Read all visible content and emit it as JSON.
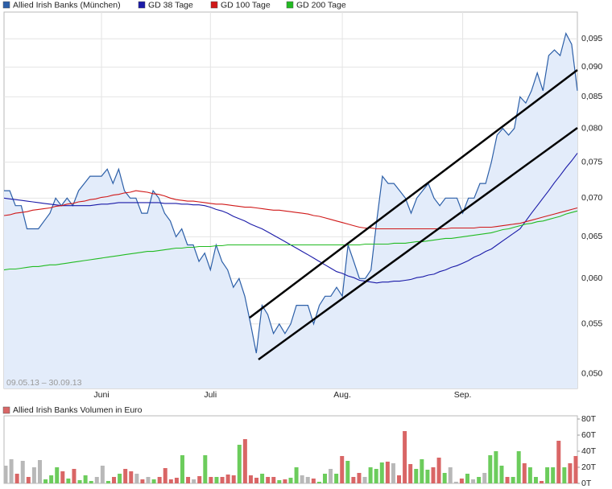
{
  "chart_data": [
    {
      "type": "line",
      "log_scale": true,
      "grid": true,
      "legend": "top-left",
      "note": "09.05.13 – 30.09.13",
      "categories": [
        null,
        null,
        null,
        null,
        null,
        null,
        null,
        null,
        null,
        null,
        null,
        null,
        null,
        null,
        null,
        null,
        null,
        "Juni",
        null,
        null,
        null,
        null,
        null,
        null,
        null,
        null,
        null,
        null,
        null,
        null,
        null,
        null,
        null,
        null,
        null,
        null,
        "Juli",
        null,
        null,
        null,
        null,
        null,
        null,
        null,
        null,
        null,
        null,
        null,
        null,
        null,
        null,
        null,
        null,
        null,
        null,
        null,
        null,
        null,
        null,
        "Aug.",
        null,
        null,
        null,
        null,
        null,
        null,
        null,
        null,
        null,
        null,
        null,
        null,
        null,
        null,
        null,
        null,
        null,
        null,
        null,
        null,
        "Sep.",
        null,
        null,
        null,
        null,
        null,
        null,
        null,
        null,
        null,
        null,
        null,
        null,
        null,
        null,
        null,
        null,
        null,
        null,
        null,
        null
      ],
      "ylim": [
        0.0486,
        0.1
      ],
      "yticks": [
        {
          "value": 0.05,
          "label": "0,050"
        },
        {
          "value": 0.055,
          "label": "0,055"
        },
        {
          "value": 0.06,
          "label": "0,060"
        },
        {
          "value": 0.065,
          "label": "0,065"
        },
        {
          "value": 0.07,
          "label": "0,070"
        },
        {
          "value": 0.075,
          "label": "0,075"
        },
        {
          "value": 0.08,
          "label": "0,080"
        },
        {
          "value": 0.085,
          "label": "0,085"
        },
        {
          "value": 0.09,
          "label": "0,090"
        },
        {
          "value": 0.095,
          "label": "0,095"
        }
      ],
      "series": [
        {
          "name": "Allied Irish Banks (München)",
          "color": "#2c5fa8",
          "fill": "#e3ecfa",
          "values": [
            0.071,
            0.071,
            0.069,
            0.069,
            0.066,
            0.066,
            0.066,
            0.067,
            0.068,
            0.07,
            0.069,
            0.07,
            0.069,
            0.071,
            0.072,
            0.073,
            0.073,
            0.073,
            0.074,
            0.072,
            0.074,
            0.071,
            0.07,
            0.07,
            0.068,
            0.068,
            0.071,
            0.07,
            0.068,
            0.067,
            0.065,
            0.066,
            0.064,
            0.064,
            0.062,
            0.063,
            0.061,
            0.064,
            0.062,
            0.061,
            0.059,
            0.06,
            0.058,
            0.055,
            0.052,
            0.057,
            0.056,
            0.054,
            0.055,
            0.054,
            0.055,
            0.057,
            0.057,
            0.057,
            0.055,
            0.057,
            0.058,
            0.058,
            0.059,
            0.058,
            0.064,
            0.062,
            0.06,
            0.06,
            0.061,
            0.067,
            0.073,
            0.072,
            0.072,
            0.071,
            0.07,
            0.068,
            0.07,
            0.071,
            0.072,
            0.07,
            0.069,
            0.07,
            0.07,
            0.07,
            0.068,
            0.07,
            0.07,
            0.072,
            0.072,
            0.075,
            0.079,
            0.08,
            0.079,
            0.08,
            0.085,
            0.084,
            0.086,
            0.089,
            0.086,
            0.092,
            0.093,
            0.092,
            0.096,
            0.094,
            0.086
          ]
        },
        {
          "name": "GD 38 Tage",
          "color": "#1a1aa8",
          "values": [
            0.07,
            0.0699,
            0.0698,
            0.0697,
            0.0696,
            0.0695,
            0.0694,
            0.0693,
            0.0692,
            0.0691,
            0.069,
            0.069,
            0.069,
            0.069,
            0.069,
            0.069,
            0.0691,
            0.0692,
            0.0692,
            0.0693,
            0.0694,
            0.0694,
            0.0694,
            0.0694,
            0.0694,
            0.0694,
            0.0694,
            0.0694,
            0.0693,
            0.0693,
            0.0693,
            0.0692,
            0.0692,
            0.0691,
            0.0691,
            0.069,
            0.0688,
            0.0685,
            0.0683,
            0.068,
            0.0676,
            0.0673,
            0.067,
            0.0666,
            0.0663,
            0.066,
            0.0656,
            0.0652,
            0.0648,
            0.0644,
            0.064,
            0.0636,
            0.0632,
            0.0628,
            0.0624,
            0.062,
            0.0616,
            0.0612,
            0.0608,
            0.0606,
            0.0603,
            0.0601,
            0.0598,
            0.0597,
            0.0596,
            0.0595,
            0.0596,
            0.0596,
            0.0597,
            0.0597,
            0.0598,
            0.0599,
            0.0601,
            0.0602,
            0.0604,
            0.0605,
            0.0608,
            0.061,
            0.0613,
            0.0615,
            0.0618,
            0.0621,
            0.0625,
            0.0628,
            0.0632,
            0.0635,
            0.064,
            0.0645,
            0.065,
            0.0655,
            0.066,
            0.067,
            0.068,
            0.069,
            0.07,
            0.071,
            0.0721,
            0.0731,
            0.0742,
            0.0752,
            0.0763
          ]
        },
        {
          "name": "GD 100 Tage",
          "color": "#d01818",
          "values": [
            0.0677,
            0.0678,
            0.068,
            0.0681,
            0.0682,
            0.0684,
            0.0685,
            0.0686,
            0.0687,
            0.0689,
            0.069,
            0.0692,
            0.0693,
            0.0695,
            0.0696,
            0.0698,
            0.0699,
            0.0701,
            0.0702,
            0.0704,
            0.0705,
            0.0707,
            0.0708,
            0.071,
            0.0709,
            0.0708,
            0.0706,
            0.0705,
            0.0703,
            0.07,
            0.0698,
            0.0697,
            0.0696,
            0.0696,
            0.0695,
            0.0694,
            0.0693,
            0.0692,
            0.0692,
            0.0691,
            0.069,
            0.0689,
            0.0688,
            0.0688,
            0.0687,
            0.0686,
            0.0685,
            0.0684,
            0.0684,
            0.0683,
            0.0682,
            0.0681,
            0.068,
            0.0679,
            0.0677,
            0.0676,
            0.0674,
            0.0672,
            0.067,
            0.0668,
            0.0666,
            0.0664,
            0.0662,
            0.0661,
            0.0661,
            0.066,
            0.066,
            0.066,
            0.066,
            0.066,
            0.066,
            0.066,
            0.066,
            0.066,
            0.066,
            0.066,
            0.066,
            0.066,
            0.0661,
            0.0661,
            0.0661,
            0.0661,
            0.0661,
            0.0662,
            0.0662,
            0.0662,
            0.0663,
            0.0664,
            0.0665,
            0.0666,
            0.0667,
            0.0669,
            0.0671,
            0.0673,
            0.0675,
            0.0677,
            0.0679,
            0.0681,
            0.0683,
            0.0685,
            0.0687
          ]
        },
        {
          "name": "GD 200 Tage",
          "color": "#22bb22",
          "values": [
            0.061,
            0.0611,
            0.0611,
            0.0612,
            0.0613,
            0.0614,
            0.0614,
            0.0615,
            0.0616,
            0.0616,
            0.0617,
            0.0618,
            0.0619,
            0.062,
            0.0621,
            0.0622,
            0.0623,
            0.0624,
            0.0625,
            0.0626,
            0.0627,
            0.0628,
            0.0629,
            0.063,
            0.0631,
            0.0632,
            0.0632,
            0.0633,
            0.0634,
            0.0635,
            0.0636,
            0.0636,
            0.0637,
            0.0637,
            0.0638,
            0.0638,
            0.0638,
            0.0639,
            0.0639,
            0.064,
            0.064,
            0.064,
            0.064,
            0.064,
            0.064,
            0.064,
            0.064,
            0.064,
            0.064,
            0.064,
            0.064,
            0.064,
            0.064,
            0.064,
            0.064,
            0.064,
            0.064,
            0.064,
            0.064,
            0.064,
            0.064,
            0.064,
            0.064,
            0.0641,
            0.0641,
            0.0641,
            0.0641,
            0.0641,
            0.0642,
            0.0642,
            0.0642,
            0.0643,
            0.0644,
            0.0644,
            0.0645,
            0.0646,
            0.0647,
            0.0648,
            0.0648,
            0.0649,
            0.065,
            0.0651,
            0.0652,
            0.0653,
            0.0654,
            0.0655,
            0.0657,
            0.0659,
            0.066,
            0.0662,
            0.0664,
            0.0666,
            0.0667,
            0.0669,
            0.067,
            0.0672,
            0.0674,
            0.0676,
            0.0679,
            0.0681,
            0.0683
          ]
        }
      ]
    },
    {
      "type": "bar",
      "title": "Allied Irish Banks Volumen in Euro",
      "color": "#d96666",
      "up_color": "#6ccc5c",
      "down_color": "#d96666",
      "flat_color": "#b8b8b8",
      "ylim": [
        0,
        84
      ],
      "yticks": [
        {
          "value": 0,
          "label": "0T"
        },
        {
          "value": 20,
          "label": "20T"
        },
        {
          "value": 40,
          "label": "40T"
        },
        {
          "value": 60,
          "label": "60T"
        },
        {
          "value": 80,
          "label": "80T"
        }
      ],
      "values": [
        22,
        30,
        12,
        28,
        8,
        20,
        29,
        5,
        10,
        20,
        15,
        6,
        18,
        4,
        10,
        3,
        8,
        22,
        3,
        8,
        12,
        18,
        15,
        12,
        5,
        8,
        5,
        8,
        19,
        5,
        7,
        35,
        8,
        5,
        9,
        35,
        8,
        8,
        8,
        11,
        10,
        48,
        55,
        10,
        7,
        12,
        8,
        8,
        4,
        5,
        7,
        20,
        10,
        8,
        6,
        2,
        12,
        18,
        12,
        34,
        28,
        8,
        13,
        8,
        20,
        18,
        26,
        27,
        25,
        10,
        65,
        24,
        18,
        30,
        17,
        20,
        32,
        13,
        20,
        2,
        6,
        12,
        5,
        8,
        13,
        35,
        40,
        22,
        8,
        8,
        40,
        25,
        20,
        8,
        3,
        20,
        20,
        53,
        20,
        25,
        34
      ]
    }
  ]
}
